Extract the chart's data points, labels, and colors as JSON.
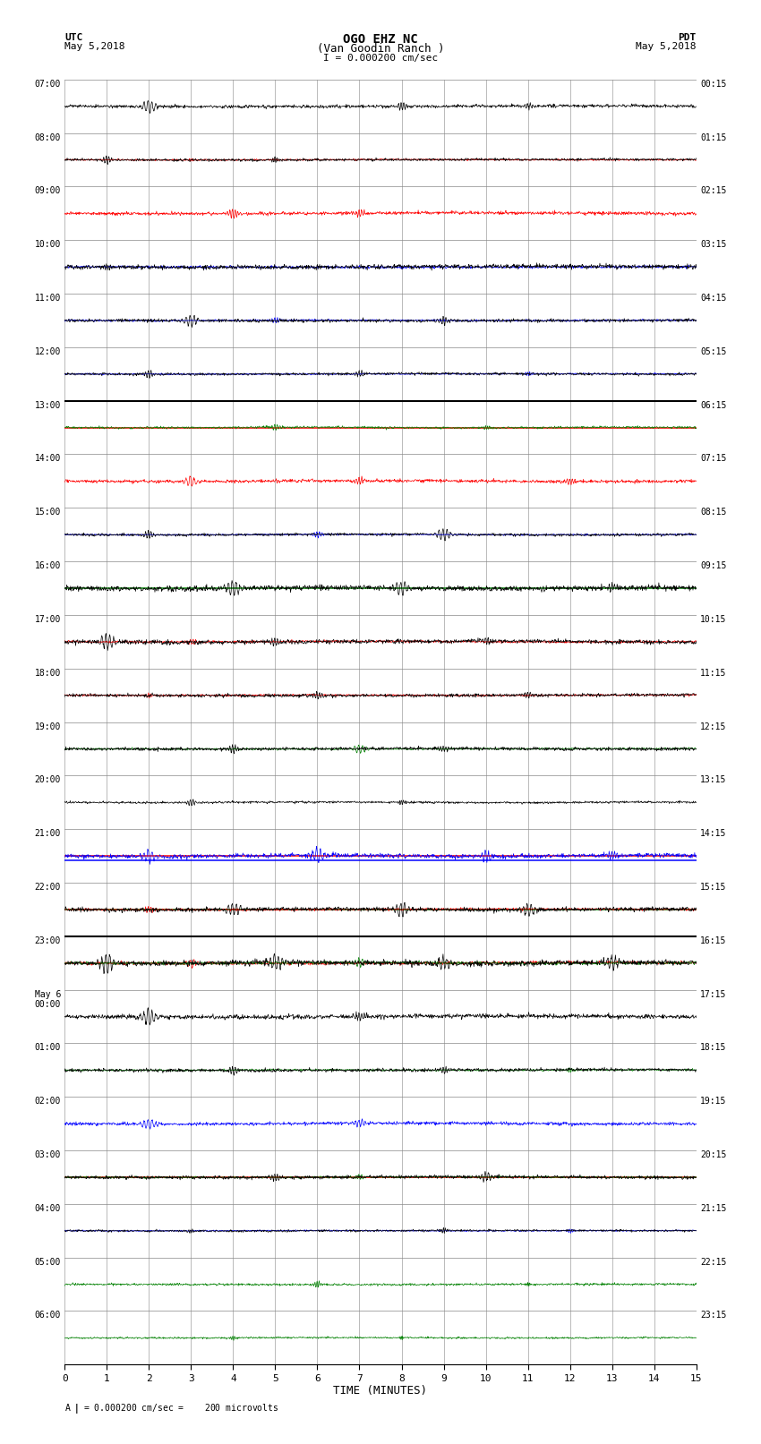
{
  "title_line1": "OGO EHZ NC",
  "title_line2": "(Van Goodin Ranch )",
  "scale_text": "I = 0.000200 cm/sec",
  "footer_text": "= 0.000200 cm/sec =    200 microvolts",
  "utc_label": "UTC",
  "utc_date": "May 5,2018",
  "pdt_label": "PDT",
  "pdt_date": "May 5,2018",
  "xlabel": "TIME (MINUTES)",
  "xlim": [
    0,
    15
  ],
  "xticks": [
    0,
    1,
    2,
    3,
    4,
    5,
    6,
    7,
    8,
    9,
    10,
    11,
    12,
    13,
    14,
    15
  ],
  "left_labels": [
    "07:00",
    "08:00",
    "09:00",
    "10:00",
    "11:00",
    "12:00",
    "13:00",
    "14:00",
    "15:00",
    "16:00",
    "17:00",
    "18:00",
    "19:00",
    "20:00",
    "21:00",
    "22:00",
    "23:00",
    "May 6\n00:00",
    "01:00",
    "02:00",
    "03:00",
    "04:00",
    "05:00",
    "06:00"
  ],
  "right_labels": [
    "00:15",
    "01:15",
    "02:15",
    "03:15",
    "04:15",
    "05:15",
    "06:15",
    "07:15",
    "08:15",
    "09:15",
    "10:15",
    "11:15",
    "12:15",
    "13:15",
    "14:15",
    "15:15",
    "16:15",
    "17:15",
    "18:15",
    "19:15",
    "20:15",
    "21:15",
    "22:15",
    "23:15"
  ],
  "n_rows": 24,
  "bg_color": "#ffffff",
  "grid_color": "#aaaaaa",
  "trace_colors": [
    "black",
    "red",
    "blue",
    "green"
  ],
  "special_rows_red_line": [
    6,
    14,
    20
  ],
  "special_rows_blue_line": [
    14,
    19
  ],
  "special_rows_green_line": [
    9,
    15
  ],
  "thick_black_rows": [
    6,
    16
  ],
  "seed": 42
}
